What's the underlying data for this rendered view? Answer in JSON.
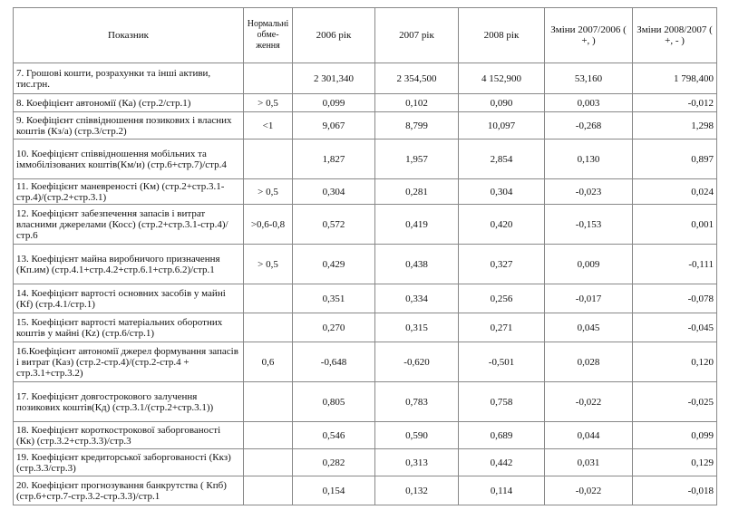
{
  "table": {
    "columns": [
      "Показник",
      "Нормальні обме-ження",
      "2006 рік",
      "2007 рік",
      "2008 рік",
      "Зміни 2007/2006 ( +, )",
      "Зміни 2008/2007 ( +, - )"
    ],
    "rows": [
      [
        "7. Грошові кошти, розрахунки та інші активи, тис.грн.",
        null,
        "2 301,340",
        "2 354,500",
        "4 152,900",
        "53,160",
        "1 798,400"
      ],
      [
        "8. Коефіцієнт автономії (Ка) (стр.2/стр.1)",
        "> 0,5",
        "0,099",
        "0,102",
        "0,090",
        "0,003",
        "-0,012"
      ],
      [
        "9. Коефіцієнт співвідношення позикових і власних коштів (Кз/а) (стр.3/стр.2)",
        "<1",
        "9,067",
        "8,799",
        "10,097",
        "-0,268",
        "1,298"
      ],
      [
        "10. Коефіцієнт співвідношення мобільних та іммобілізованих коштів(Км/и) (стр.6+стр.7)/стр.4",
        null,
        "1,827",
        "1,957",
        "2,854",
        "0,130",
        "0,897"
      ],
      [
        "11. Коефіцієнт маневреності (Км) (стр.2+стр.3.1-стр.4)/(стр.2+стр.3.1)",
        "> 0,5",
        "0,304",
        "0,281",
        "0,304",
        "-0,023",
        "0,024"
      ],
      [
        "12. Коефіцієнт забезпечення запасів і витрат власними джерелами (Косс) (стр.2+стр.3.1-стр.4)/стр.6",
        ">0,6-0,8",
        "0,572",
        "0,419",
        "0,420",
        "-0,153",
        "0,001"
      ],
      [
        "13. Коефіцієнт майна виробничого призначення (Кп.им) (стр.4.1+стр.4.2+стр.6.1+стр.6.2)/стр.1",
        "> 0,5",
        "0,429",
        "0,438",
        "0,327",
        "0,009",
        "-0,111"
      ],
      [
        "14. Коефіцієнт вартості основних засобів у майні (Кf) (стр.4.1/стр.1)",
        null,
        "0,351",
        "0,334",
        "0,256",
        "-0,017",
        "-0,078"
      ],
      [
        "15. Коефіцієнт вартості матеріальних оборотних коштів у майні (Кz) (стр.6/стр.1)",
        null,
        "0,270",
        "0,315",
        "0,271",
        "0,045",
        "-0,045"
      ],
      [
        "16.Коефіцієнт автономії джерел формування запасів і витрат (Каз) (стр.2-стр.4)/(стр.2-стр.4 + стр.3.1+стр.3.2)",
        "0,6",
        "-0,648",
        "-0,620",
        "-0,501",
        "0,028",
        "0,120"
      ],
      [
        "17. Коефіцієнт довгострокового залучення позикових коштів(Кд) (стр.3.1/(стр.2+стр.3.1))",
        null,
        "0,805",
        "0,783",
        "0,758",
        "-0,022",
        "-0,025"
      ],
      [
        "18. Коефіцієнт короткострокової заборгованості (Кк) (стр.3.2+стр.3.3)/стр.3",
        null,
        "0,546",
        "0,590",
        "0,689",
        "0,044",
        "0,099"
      ],
      [
        "19. Коефіцієнт кредиторської заборгованості (Ккз) (стр.3.3/стр.3)",
        null,
        "0,282",
        "0,313",
        "0,442",
        "0,031",
        "0,129"
      ],
      [
        "20. Коефіцієнт прогнозування банкрутства ( Кпб) (стр.6+стр.7-стр.3.2-стр.3.3)/стр.1",
        null,
        "0,154",
        "0,132",
        "0,114",
        "-0,022",
        "-0,018"
      ]
    ]
  }
}
